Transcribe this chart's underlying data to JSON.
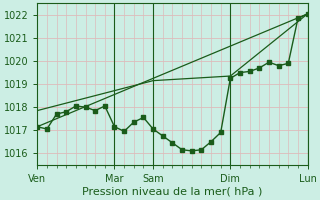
{
  "bg_color": "#cceee4",
  "grid_color_major": "#ddbbbb",
  "grid_color_minor": "#ddbbbb",
  "line_color": "#1a5c1a",
  "spine_color": "#1a5c1a",
  "title": "Pression niveau de la mer( hPa )",
  "ylim": [
    1015.5,
    1022.5
  ],
  "yticks": [
    1016,
    1017,
    1018,
    1019,
    1020,
    1021,
    1022
  ],
  "xlim": [
    0,
    168
  ],
  "xtick_major_pos": [
    0,
    48,
    72,
    120,
    168
  ],
  "xtick_major_labels": [
    "Ven",
    "Mar",
    "Sam",
    "Dim",
    "Lun"
  ],
  "vline_positions": [
    48,
    72,
    120,
    168
  ],
  "line1_x": [
    0,
    6,
    12,
    18,
    24,
    30,
    36,
    42,
    48,
    54,
    60,
    66,
    72,
    78,
    84,
    90,
    96,
    102,
    108,
    114,
    120,
    126,
    132,
    138,
    144,
    150,
    156,
    162,
    168
  ],
  "line1_y": [
    1017.15,
    1017.05,
    1017.7,
    1017.8,
    1018.05,
    1018.0,
    1017.85,
    1018.05,
    1017.15,
    1016.95,
    1017.35,
    1017.55,
    1017.05,
    1016.75,
    1016.45,
    1016.15,
    1016.1,
    1016.15,
    1016.5,
    1016.9,
    1019.25,
    1019.5,
    1019.55,
    1019.7,
    1019.95,
    1019.8,
    1019.9,
    1021.85,
    1022.05
  ],
  "line2_x": [
    0,
    168
  ],
  "line2_y": [
    1017.15,
    1022.05
  ],
  "line3_x": [
    0,
    72,
    120,
    168
  ],
  "line3_y": [
    1017.85,
    1019.15,
    1019.35,
    1022.05
  ],
  "marker_size": 2.5,
  "title_fontsize": 8,
  "tick_fontsize": 7
}
